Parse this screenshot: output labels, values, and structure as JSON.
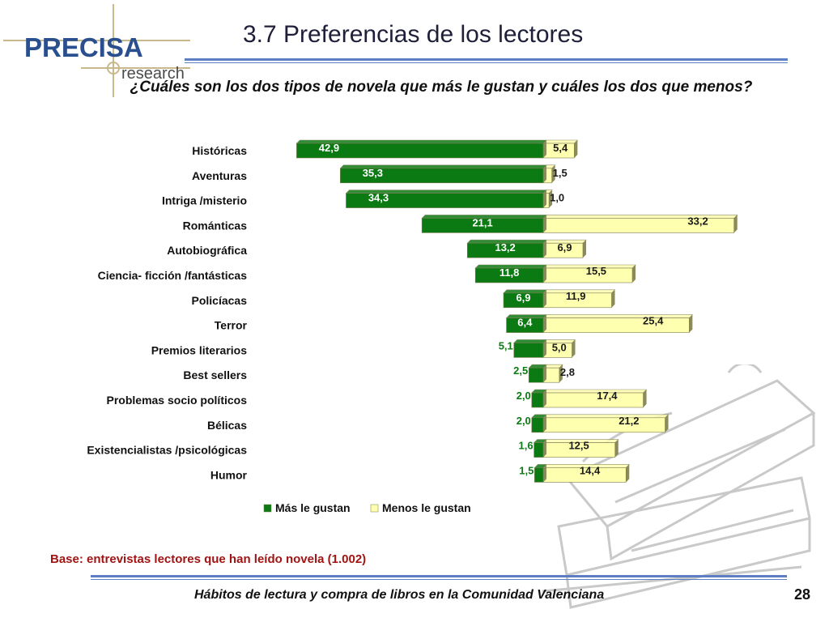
{
  "slide": {
    "title": "3.7 Preferencias de los lectores",
    "question": "¿Cuáles son los dos tipos de novela que más le gustan y cuáles los dos que menos?",
    "base_note": "Base: entrevistas lectores que han leído novela (1.002)",
    "footer": "Hábitos de lectura y compra de libros en la Comunidad Valenciana",
    "page_number": "28"
  },
  "logo": {
    "brand": "PRECISA",
    "tagline": "research"
  },
  "colors": {
    "like": "#0b7a12",
    "dislike": "#ffffb0",
    "dislike_label": "#1a1a1a",
    "like_label_outside": "#0b7a12"
  },
  "chart_data": {
    "type": "bar",
    "orientation": "horizontal-diverging",
    "categories": [
      "Históricas",
      "Aventuras",
      "Intriga /misterio",
      "Románticas",
      "Autobiográfica",
      "Ciencia- ficción /fantásticas",
      "Policíacas",
      "Terror",
      "Premios literarios",
      "Best sellers",
      "Problemas socio políticos",
      "Bélicas",
      "Existencialistas /psicológicas",
      "Humor"
    ],
    "series": [
      {
        "name": "Más le gustan",
        "values": [
          42.9,
          35.3,
          34.3,
          21.1,
          13.2,
          11.8,
          6.9,
          6.4,
          5.1,
          2.5,
          2.0,
          2.0,
          1.6,
          1.5
        ],
        "labels": [
          "42,9",
          "35,3",
          "34,3",
          "21,1",
          "13,2",
          "11,8",
          "6,9",
          "6,4",
          "5,1",
          "2,5",
          "2,0",
          "2,0",
          "1,6",
          "1,5"
        ]
      },
      {
        "name": "Menos le gustan",
        "values": [
          5.4,
          1.5,
          1.0,
          33.2,
          6.9,
          15.5,
          11.9,
          25.4,
          5.0,
          2.8,
          17.4,
          21.2,
          12.5,
          14.4
        ],
        "labels": [
          "5,4",
          "1,5",
          "1,0",
          "33,2",
          "6,9",
          "15,5",
          "11,9",
          "25,4",
          "5,0",
          "2,8",
          "17,4",
          "21,2",
          "12,5",
          "14,4"
        ]
      }
    ],
    "legend_position": "bottom",
    "grid": false
  }
}
